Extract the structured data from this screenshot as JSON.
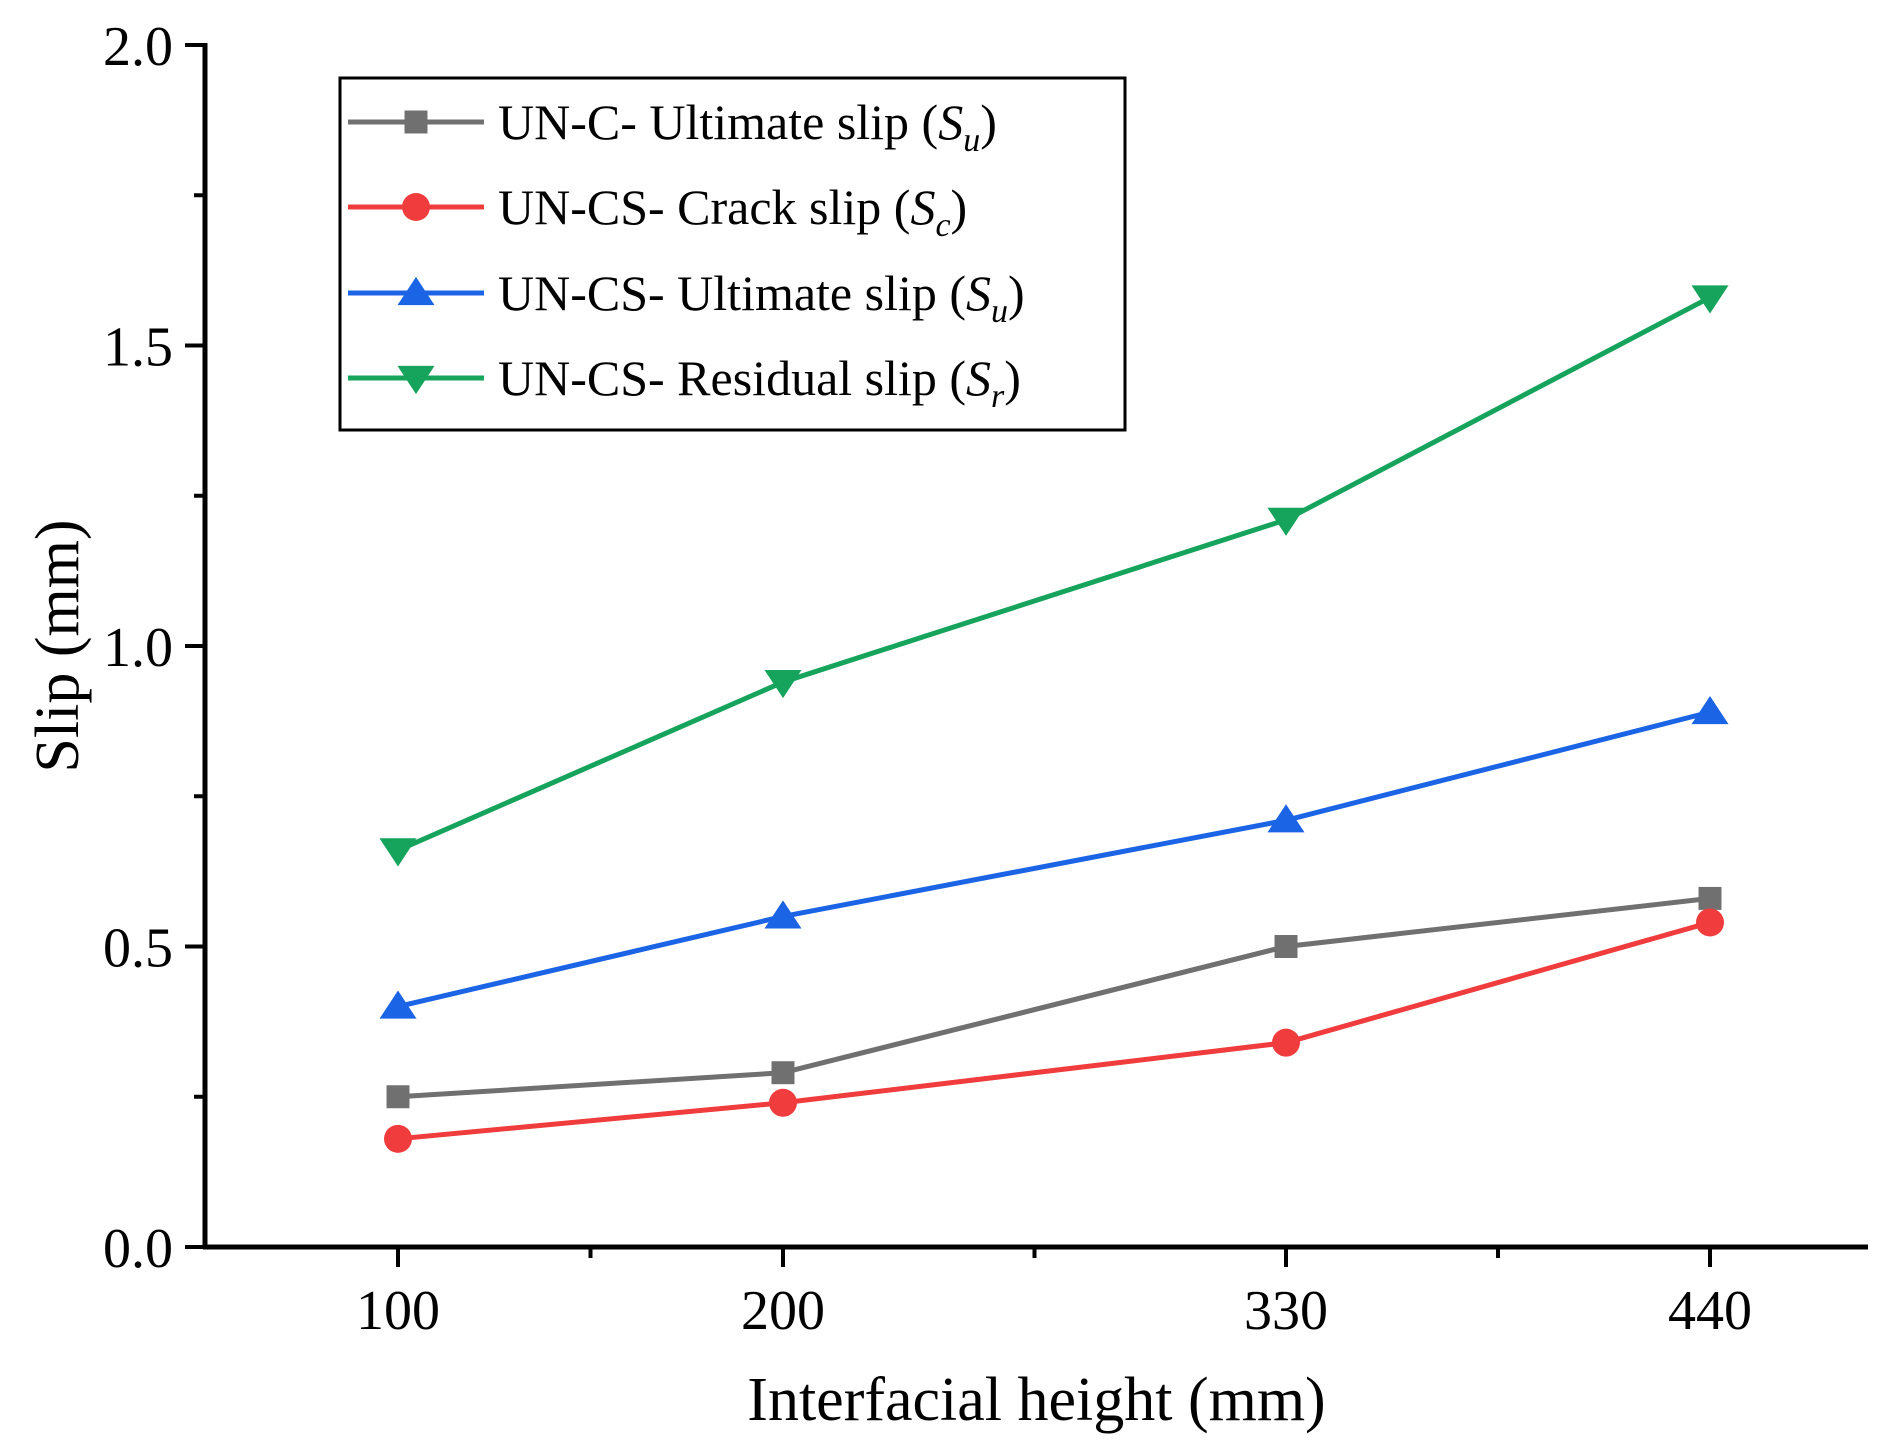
{
  "chart_data": {
    "type": "line",
    "title": "",
    "xlabel": "Interfacial height (mm)",
    "ylabel": "Slip (mm)",
    "categories": [
      "100",
      "200",
      "330",
      "440"
    ],
    "ylim": [
      0,
      2.0
    ],
    "y_ticks": [
      "0.0",
      "0.5",
      "1.0",
      "1.5",
      "2.0"
    ],
    "grid": false,
    "legend_position": "top-left",
    "series": [
      {
        "name": "UN-C- Ultimate slip (Su)",
        "label_prefix": "UN-C- Ultimate slip (",
        "symbol": "S",
        "subscript": "u",
        "label_suffix": ")",
        "color": "#707070",
        "marker": "square",
        "values": [
          0.25,
          0.29,
          0.5,
          0.58
        ]
      },
      {
        "name": "UN-CS- Crack slip (Sc)",
        "label_prefix": "UN-CS- Crack slip (",
        "symbol": "S",
        "subscript": "c",
        "label_suffix": ")",
        "color": "#f03c3c",
        "marker": "circle",
        "values": [
          0.18,
          0.24,
          0.34,
          0.54
        ]
      },
      {
        "name": "UN-CS- Ultimate slip (Su)",
        "label_prefix": "UN-CS- Ultimate slip (",
        "symbol": "S",
        "subscript": "u",
        "label_suffix": ")",
        "color": "#1c64e6",
        "marker": "triangle-up",
        "values": [
          0.4,
          0.55,
          0.71,
          0.89
        ]
      },
      {
        "name": "UN-CS- Residual slip (Sr)",
        "label_prefix": "UN-CS- Residual slip (",
        "symbol": "S",
        "subscript": "r",
        "label_suffix": ")",
        "color": "#16a45c",
        "marker": "triangle-down",
        "values": [
          0.66,
          0.94,
          1.21,
          1.58
        ]
      }
    ]
  }
}
